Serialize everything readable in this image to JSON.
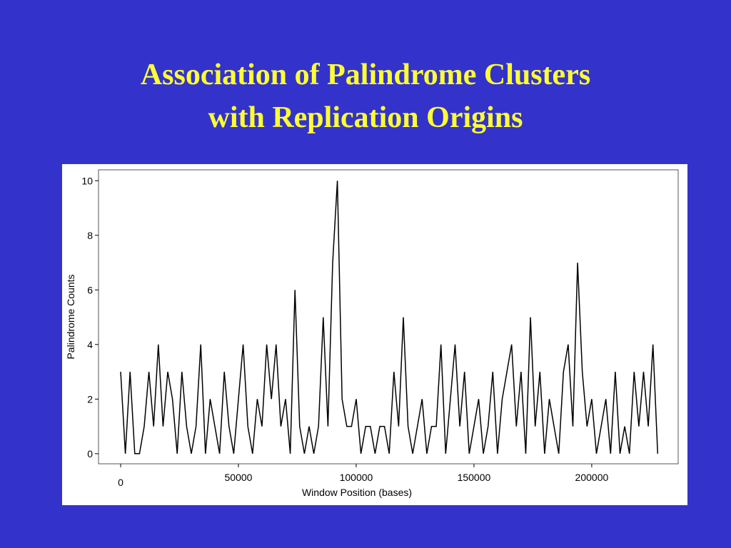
{
  "chart_data": {
    "type": "line",
    "title": [
      "Association of Palindrome Clusters",
      "with Replication Origins"
    ],
    "xlabel": "Window Position (bases)",
    "ylabel": "Palindrome Counts",
    "x": [
      0,
      2000,
      4000,
      6000,
      8000,
      10000,
      12000,
      14000,
      16000,
      18000,
      20000,
      22000,
      24000,
      26000,
      28000,
      30000,
      32000,
      34000,
      36000,
      38000,
      40000,
      42000,
      44000,
      46000,
      48000,
      50000,
      52000,
      54000,
      56000,
      58000,
      60000,
      62000,
      64000,
      66000,
      68000,
      70000,
      72000,
      74000,
      76000,
      78000,
      80000,
      82000,
      84000,
      86000,
      88000,
      90000,
      92000,
      94000,
      96000,
      98000,
      100000,
      102000,
      104000,
      106000,
      108000,
      110000,
      112000,
      114000,
      116000,
      118000,
      120000,
      122000,
      124000,
      126000,
      128000,
      130000,
      132000,
      134000,
      136000,
      138000,
      140000,
      142000,
      144000,
      146000,
      148000,
      150000,
      152000,
      154000,
      156000,
      158000,
      160000,
      162000,
      164000,
      166000,
      168000,
      170000,
      172000,
      174000,
      176000,
      178000,
      180000,
      182000,
      184000,
      186000,
      188000,
      190000,
      192000,
      194000,
      196000,
      198000,
      200000,
      202000,
      204000,
      206000,
      208000,
      210000,
      212000,
      214000,
      216000,
      218000,
      220000,
      222000,
      224000,
      226000,
      228000
    ],
    "values": [
      3,
      0,
      3,
      0,
      0,
      1,
      3,
      1,
      4,
      1,
      3,
      2,
      0,
      3,
      1,
      0,
      1,
      4,
      0,
      2,
      1,
      0,
      3,
      1,
      0,
      2,
      4,
      1,
      0,
      2,
      1,
      4,
      2,
      4,
      1,
      2,
      0,
      6,
      1,
      0,
      1,
      0,
      1,
      5,
      1,
      7,
      10,
      2,
      1,
      1,
      2,
      0,
      1,
      1,
      0,
      1,
      1,
      0,
      3,
      1,
      5,
      1,
      0,
      1,
      2,
      0,
      1,
      1,
      4,
      0,
      2,
      4,
      1,
      3,
      0,
      1,
      2,
      0,
      1,
      3,
      0,
      2,
      3,
      4,
      1,
      3,
      0,
      5,
      1,
      3,
      0,
      2,
      1,
      0,
      3,
      4,
      1,
      7,
      3,
      1,
      2,
      0,
      1,
      2,
      0,
      3,
      0,
      1,
      0,
      3,
      1,
      3,
      1,
      4,
      0
    ],
    "color": "#000000",
    "xlim": [
      -9400,
      236700
    ],
    "ylim": [
      -0.37,
      10.4
    ],
    "xticks": [
      0,
      50000,
      100000,
      150000,
      200000
    ],
    "yticks": [
      0,
      2,
      4,
      6,
      8,
      10
    ]
  }
}
